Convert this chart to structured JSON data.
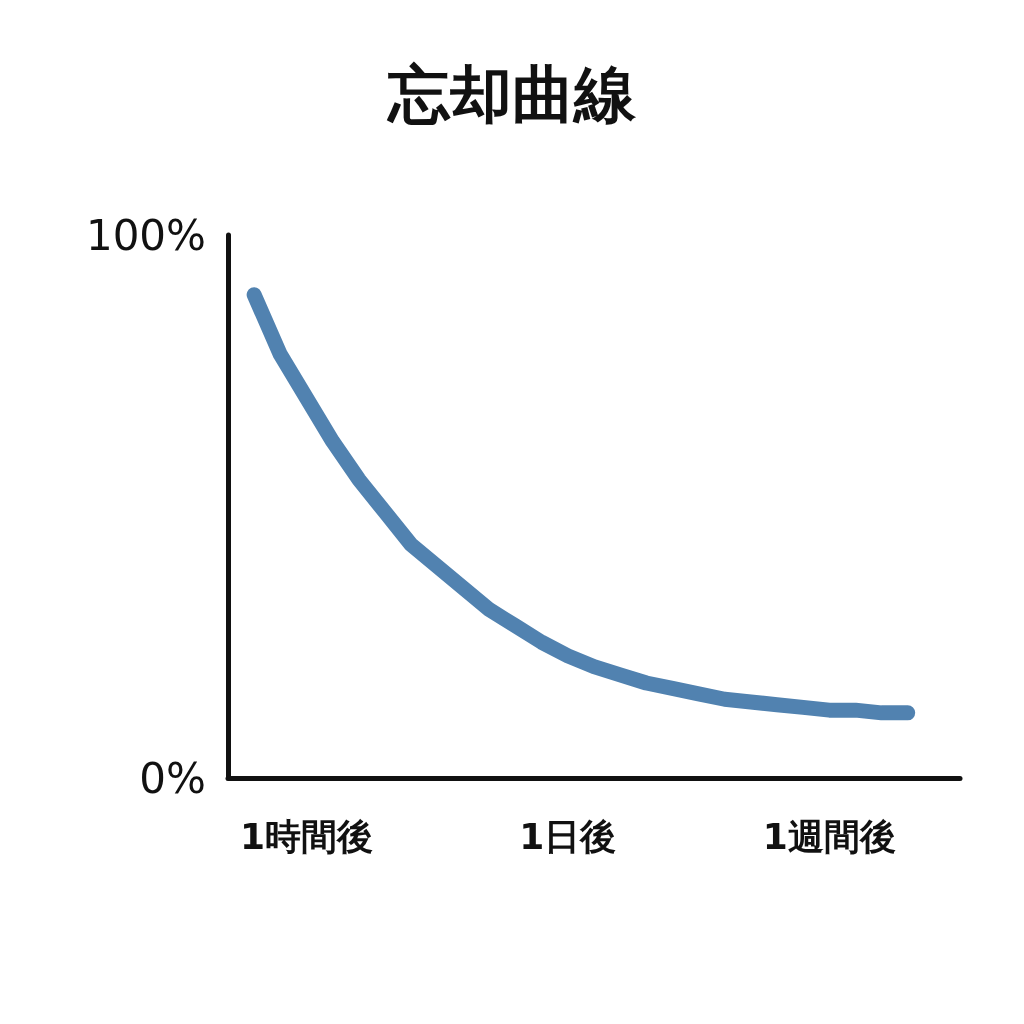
{
  "chart_data": {
    "type": "line",
    "title": "忘却曲線",
    "categories": [
      null,
      null,
      null,
      "1時間後",
      null,
      null,
      null,
      null,
      null,
      null,
      null,
      null,
      null,
      "1日後",
      null,
      null,
      null,
      null,
      null,
      null,
      null,
      null,
      null,
      "1週間後",
      null,
      null,
      null,
      null,
      null
    ],
    "series": [
      {
        "color": "#5182b0",
        "values": [
          null,
          89,
          78,
          70,
          62,
          55,
          49,
          43,
          39,
          35,
          31,
          28,
          25,
          22.5,
          20.5,
          19,
          17.5,
          16.5,
          15.5,
          14.5,
          14,
          13.5,
          13,
          12.5,
          12.5,
          12,
          12,
          null,
          null
        ]
      }
    ],
    "ylim": [
      0,
      100
    ],
    "yticks": [
      {
        "value": 0,
        "label": "0%"
      },
      {
        "value": 100,
        "label": "100%"
      }
    ],
    "grid": false,
    "line_style": "solid"
  }
}
